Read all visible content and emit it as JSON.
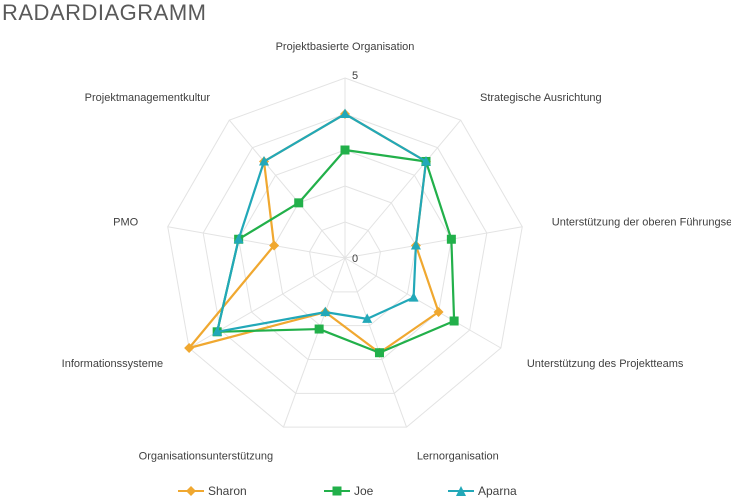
{
  "chart_data": {
    "type": "radar",
    "title": "RADARDIAGRAMM",
    "categories": [
      "Projektbasierte Organisation",
      "Strategische Ausrichtung",
      "Unterstützung der oberen Führungsebene",
      "Unterstützung des Projektteams",
      "Lernorganisation",
      "Organisationsunterstützung",
      "Informationssysteme",
      "PMO",
      "Projektmanagementkultur"
    ],
    "rmin": 0,
    "rmax": 5,
    "tick_labels": [
      "0",
      "5"
    ],
    "series": [
      {
        "name": "Sharon",
        "color": "#F0A830",
        "marker": "diamond",
        "values": [
          4,
          3.5,
          2,
          3,
          2.8,
          1.6,
          5,
          2,
          3.5
        ]
      },
      {
        "name": "Joe",
        "color": "#22B04A",
        "marker": "square",
        "values": [
          3,
          3.5,
          3,
          3.5,
          2.8,
          2.1,
          4.1,
          3,
          2
        ]
      },
      {
        "name": "Aparna",
        "color": "#22A8B8",
        "marker": "triangle",
        "values": [
          4,
          3.5,
          2,
          2.2,
          1.8,
          1.6,
          4.1,
          3,
          3.5
        ]
      }
    ],
    "legend_position": "bottom"
  }
}
